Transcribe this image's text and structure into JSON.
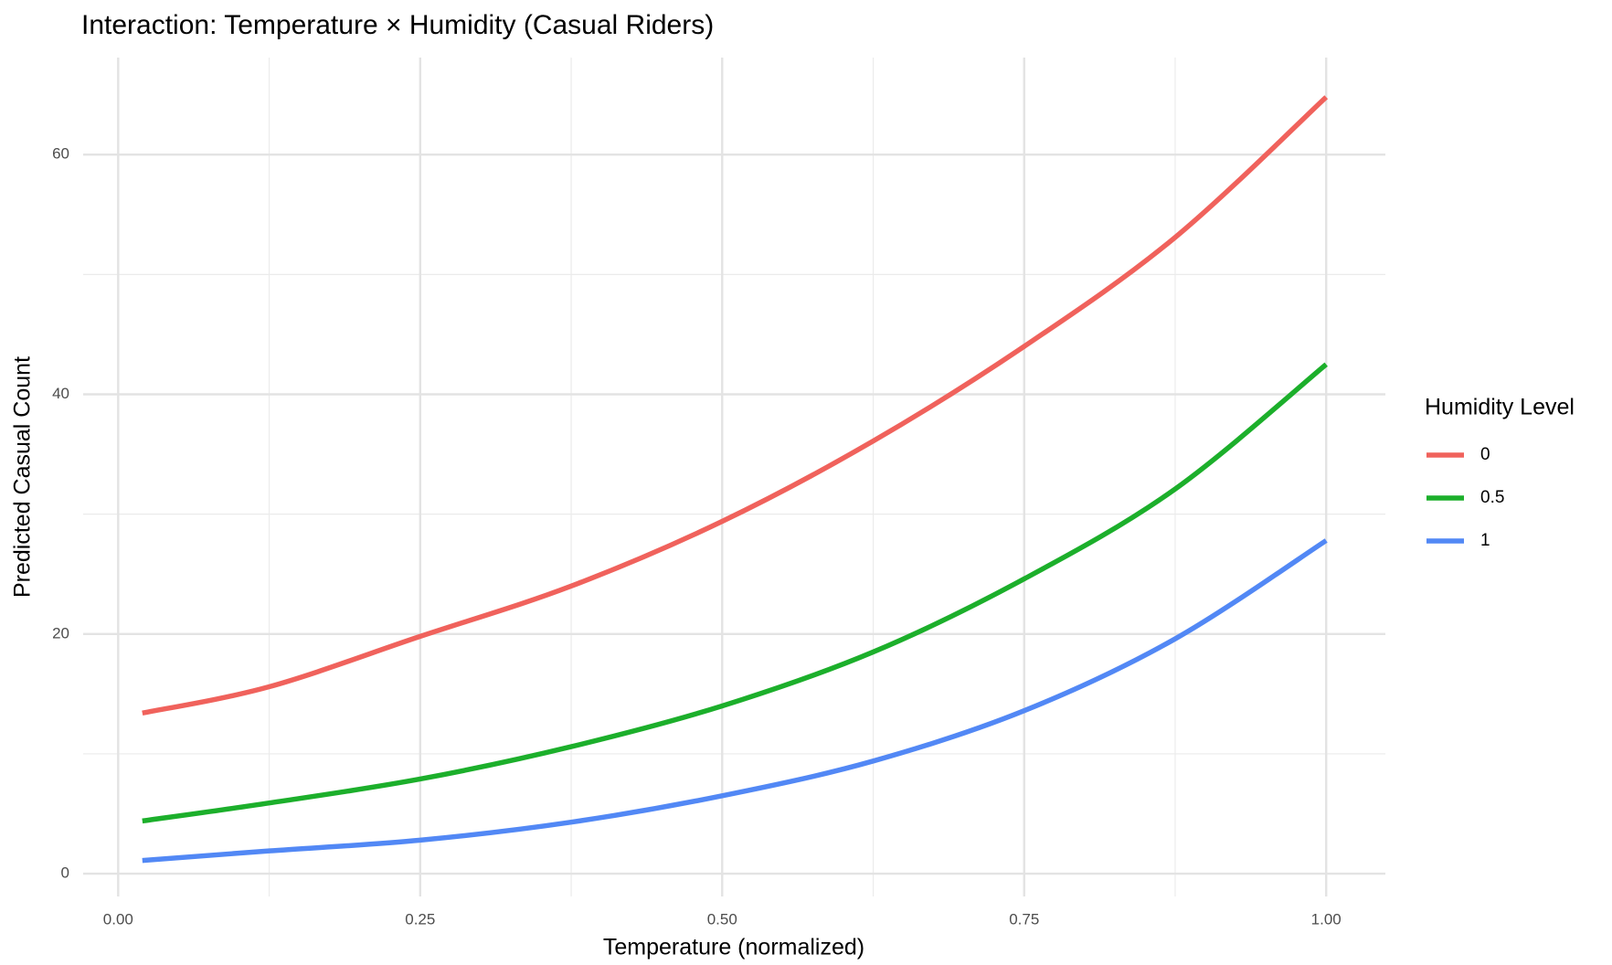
{
  "chart_data": {
    "type": "line",
    "title": "Interaction: Temperature × Humidity (Casual Riders)",
    "x_label": "Temperature (normalized)",
    "y_label": "Predicted Casual Count",
    "legend_title": "Humidity Level",
    "legend_position": "right",
    "grid": true,
    "x": [
      0.02,
      0.125,
      0.25,
      0.375,
      0.5,
      0.625,
      0.75,
      0.875,
      1
    ],
    "series": [
      {
        "name": "0",
        "color": "#f0625c",
        "values": [
          13.4,
          15.6,
          19.8,
          24.0,
          29.4,
          36.1,
          44.0,
          53.1,
          64.8
        ]
      },
      {
        "name": "0.5",
        "color": "#1caf2b",
        "values": [
          4.4,
          5.9,
          7.9,
          10.6,
          14.0,
          18.5,
          24.6,
          32.1,
          42.5
        ]
      },
      {
        "name": "1",
        "color": "#5288f5",
        "values": [
          1.1,
          1.9,
          2.8,
          4.3,
          6.5,
          9.4,
          13.6,
          19.6,
          27.8
        ]
      }
    ],
    "xlim": [
      -0.029,
      1.049
    ],
    "ylim": [
      -1.9,
      68.1
    ],
    "xticks": [
      {
        "value": 0,
        "label": "0.00"
      },
      {
        "value": 0.25,
        "label": "0.25"
      },
      {
        "value": 0.5,
        "label": "0.50"
      },
      {
        "value": 0.75,
        "label": "0.75"
      },
      {
        "value": 1,
        "label": "1.00"
      }
    ],
    "yticks": [
      0,
      20,
      40,
      60
    ],
    "xminorticks": [
      0.125,
      0.375,
      0.625,
      0.875
    ],
    "yminorticks": [
      10,
      30,
      50
    ]
  }
}
